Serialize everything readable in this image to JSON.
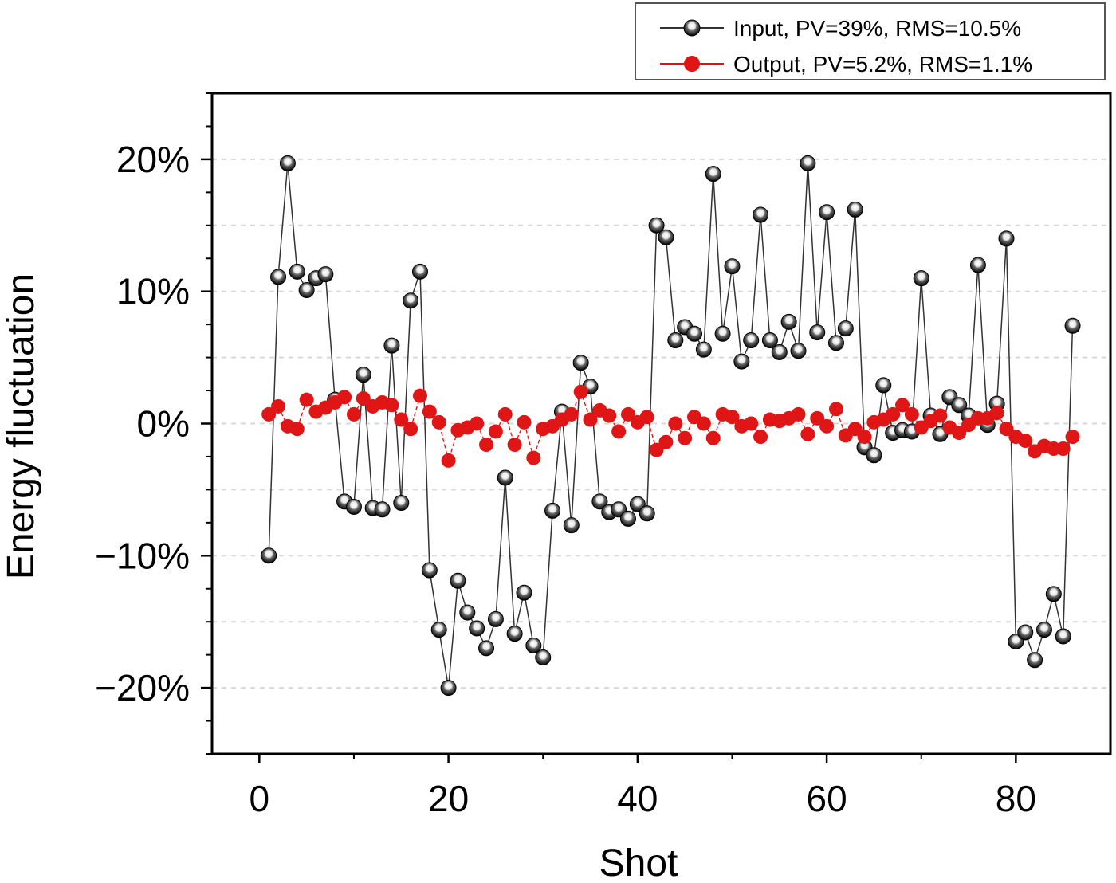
{
  "chart_data": {
    "type": "scatter",
    "xlabel": "Shot",
    "ylabel": "Energy fluctuation",
    "xlim": [
      -5,
      90
    ],
    "ylim": [
      -25,
      25
    ],
    "x_ticks": [
      0,
      20,
      40,
      60,
      80
    ],
    "x_tick_labels": [
      "0",
      "20",
      "40",
      "60",
      "80"
    ],
    "y_ticks": [
      -20,
      -10,
      0,
      10,
      20
    ],
    "y_tick_labels": [
      "−20%",
      "−10%",
      "0%",
      "10%",
      "20%"
    ],
    "grid": "horizontal dashed",
    "legend_position": "top-right",
    "series": [
      {
        "name": "Input, PV=39%, RMS=10.5%",
        "color": "#333333",
        "marker": "sphere",
        "x": [
          1,
          2,
          3,
          4,
          5,
          6,
          7,
          8,
          9,
          10,
          11,
          12,
          13,
          14,
          15,
          16,
          17,
          18,
          19,
          20,
          21,
          22,
          23,
          24,
          25,
          26,
          27,
          28,
          29,
          30,
          31,
          32,
          33,
          34,
          35,
          36,
          37,
          38,
          39,
          40,
          41,
          42,
          43,
          44,
          45,
          46,
          47,
          48,
          49,
          50,
          51,
          52,
          53,
          54,
          55,
          56,
          57,
          58,
          59,
          60,
          61,
          62,
          63,
          64,
          65,
          66,
          67,
          68,
          69,
          70,
          71,
          72,
          73,
          74,
          75,
          76,
          77,
          78,
          79,
          80,
          81,
          82,
          83,
          84,
          85,
          86
        ],
        "y": [
          -10,
          11.1,
          19.7,
          11.5,
          10.1,
          11,
          11.3,
          1.8,
          -5.9,
          -6.3,
          3.7,
          -6.4,
          -6.5,
          5.9,
          -6,
          9.3,
          11.5,
          -11.1,
          -15.6,
          -20,
          -11.9,
          -14.3,
          -15.5,
          -17,
          -14.8,
          -4.1,
          -15.9,
          -12.8,
          -16.8,
          -17.7,
          -6.6,
          0.9,
          -7.7,
          4.6,
          2.8,
          -5.9,
          -6.7,
          -6.5,
          -7.2,
          -6.1,
          -6.8,
          15,
          14.1,
          6.3,
          7.3,
          6.8,
          5.6,
          18.9,
          6.8,
          11.9,
          4.7,
          6.3,
          15.8,
          6.3,
          5.4,
          7.7,
          5.5,
          19.7,
          6.9,
          16,
          6.1,
          7.2,
          16.2,
          -1.8,
          -2.4,
          2.9,
          -0.7,
          -0.5,
          -0.6,
          11,
          0.6,
          -0.8,
          2,
          1.4,
          0.6,
          12,
          -0.1,
          1.5,
          14,
          -16.5,
          -15.8,
          -17.9,
          -15.6,
          -12.9,
          -16.1,
          7.4
        ]
      },
      {
        "name": "Output, PV=5.2%, RMS=1.1%",
        "color": "#dd1111",
        "marker": "circle",
        "x": [
          1,
          2,
          3,
          4,
          5,
          6,
          7,
          8,
          9,
          10,
          11,
          12,
          13,
          14,
          15,
          16,
          17,
          18,
          19,
          20,
          21,
          22,
          23,
          24,
          25,
          26,
          27,
          28,
          29,
          30,
          31,
          32,
          33,
          34,
          35,
          36,
          37,
          38,
          39,
          40,
          41,
          42,
          43,
          44,
          45,
          46,
          47,
          48,
          49,
          50,
          51,
          52,
          53,
          54,
          55,
          56,
          57,
          58,
          59,
          60,
          61,
          62,
          63,
          64,
          65,
          66,
          67,
          68,
          69,
          70,
          71,
          72,
          73,
          74,
          75,
          76,
          77,
          78,
          79,
          80,
          81,
          82,
          83,
          84,
          85,
          86
        ],
        "y": [
          0.7,
          1.3,
          -0.2,
          -0.4,
          1.8,
          0.9,
          1.2,
          1.6,
          2,
          0.7,
          1.9,
          1.3,
          1.6,
          1.4,
          0.3,
          -0.4,
          2.1,
          0.9,
          0.1,
          -2.8,
          -0.5,
          -0.3,
          0,
          -1.6,
          -0.6,
          0.7,
          -1.6,
          0.1,
          -2.6,
          -0.4,
          -0.2,
          0.3,
          0.7,
          2.4,
          0.3,
          1,
          0.6,
          -0.6,
          0.7,
          0.1,
          0.5,
          -2,
          -1.4,
          0,
          -1.1,
          0.5,
          0,
          -1.1,
          0.7,
          0.5,
          -0.2,
          0,
          -1.0,
          0.3,
          0.2,
          0.4,
          0.7,
          -0.8,
          0.4,
          -0.2,
          1.1,
          -0.9,
          -0.4,
          -1.0,
          0.1,
          0.3,
          0.7,
          1.4,
          0.7,
          -0.3,
          0.2,
          0.6,
          -0.3,
          -0.7,
          -0.1,
          0.4,
          0.4,
          0.8,
          -0.4,
          -1.0,
          -1.3,
          -2.1,
          -1.7,
          -1.9,
          -1.9,
          -1.0
        ]
      }
    ]
  }
}
